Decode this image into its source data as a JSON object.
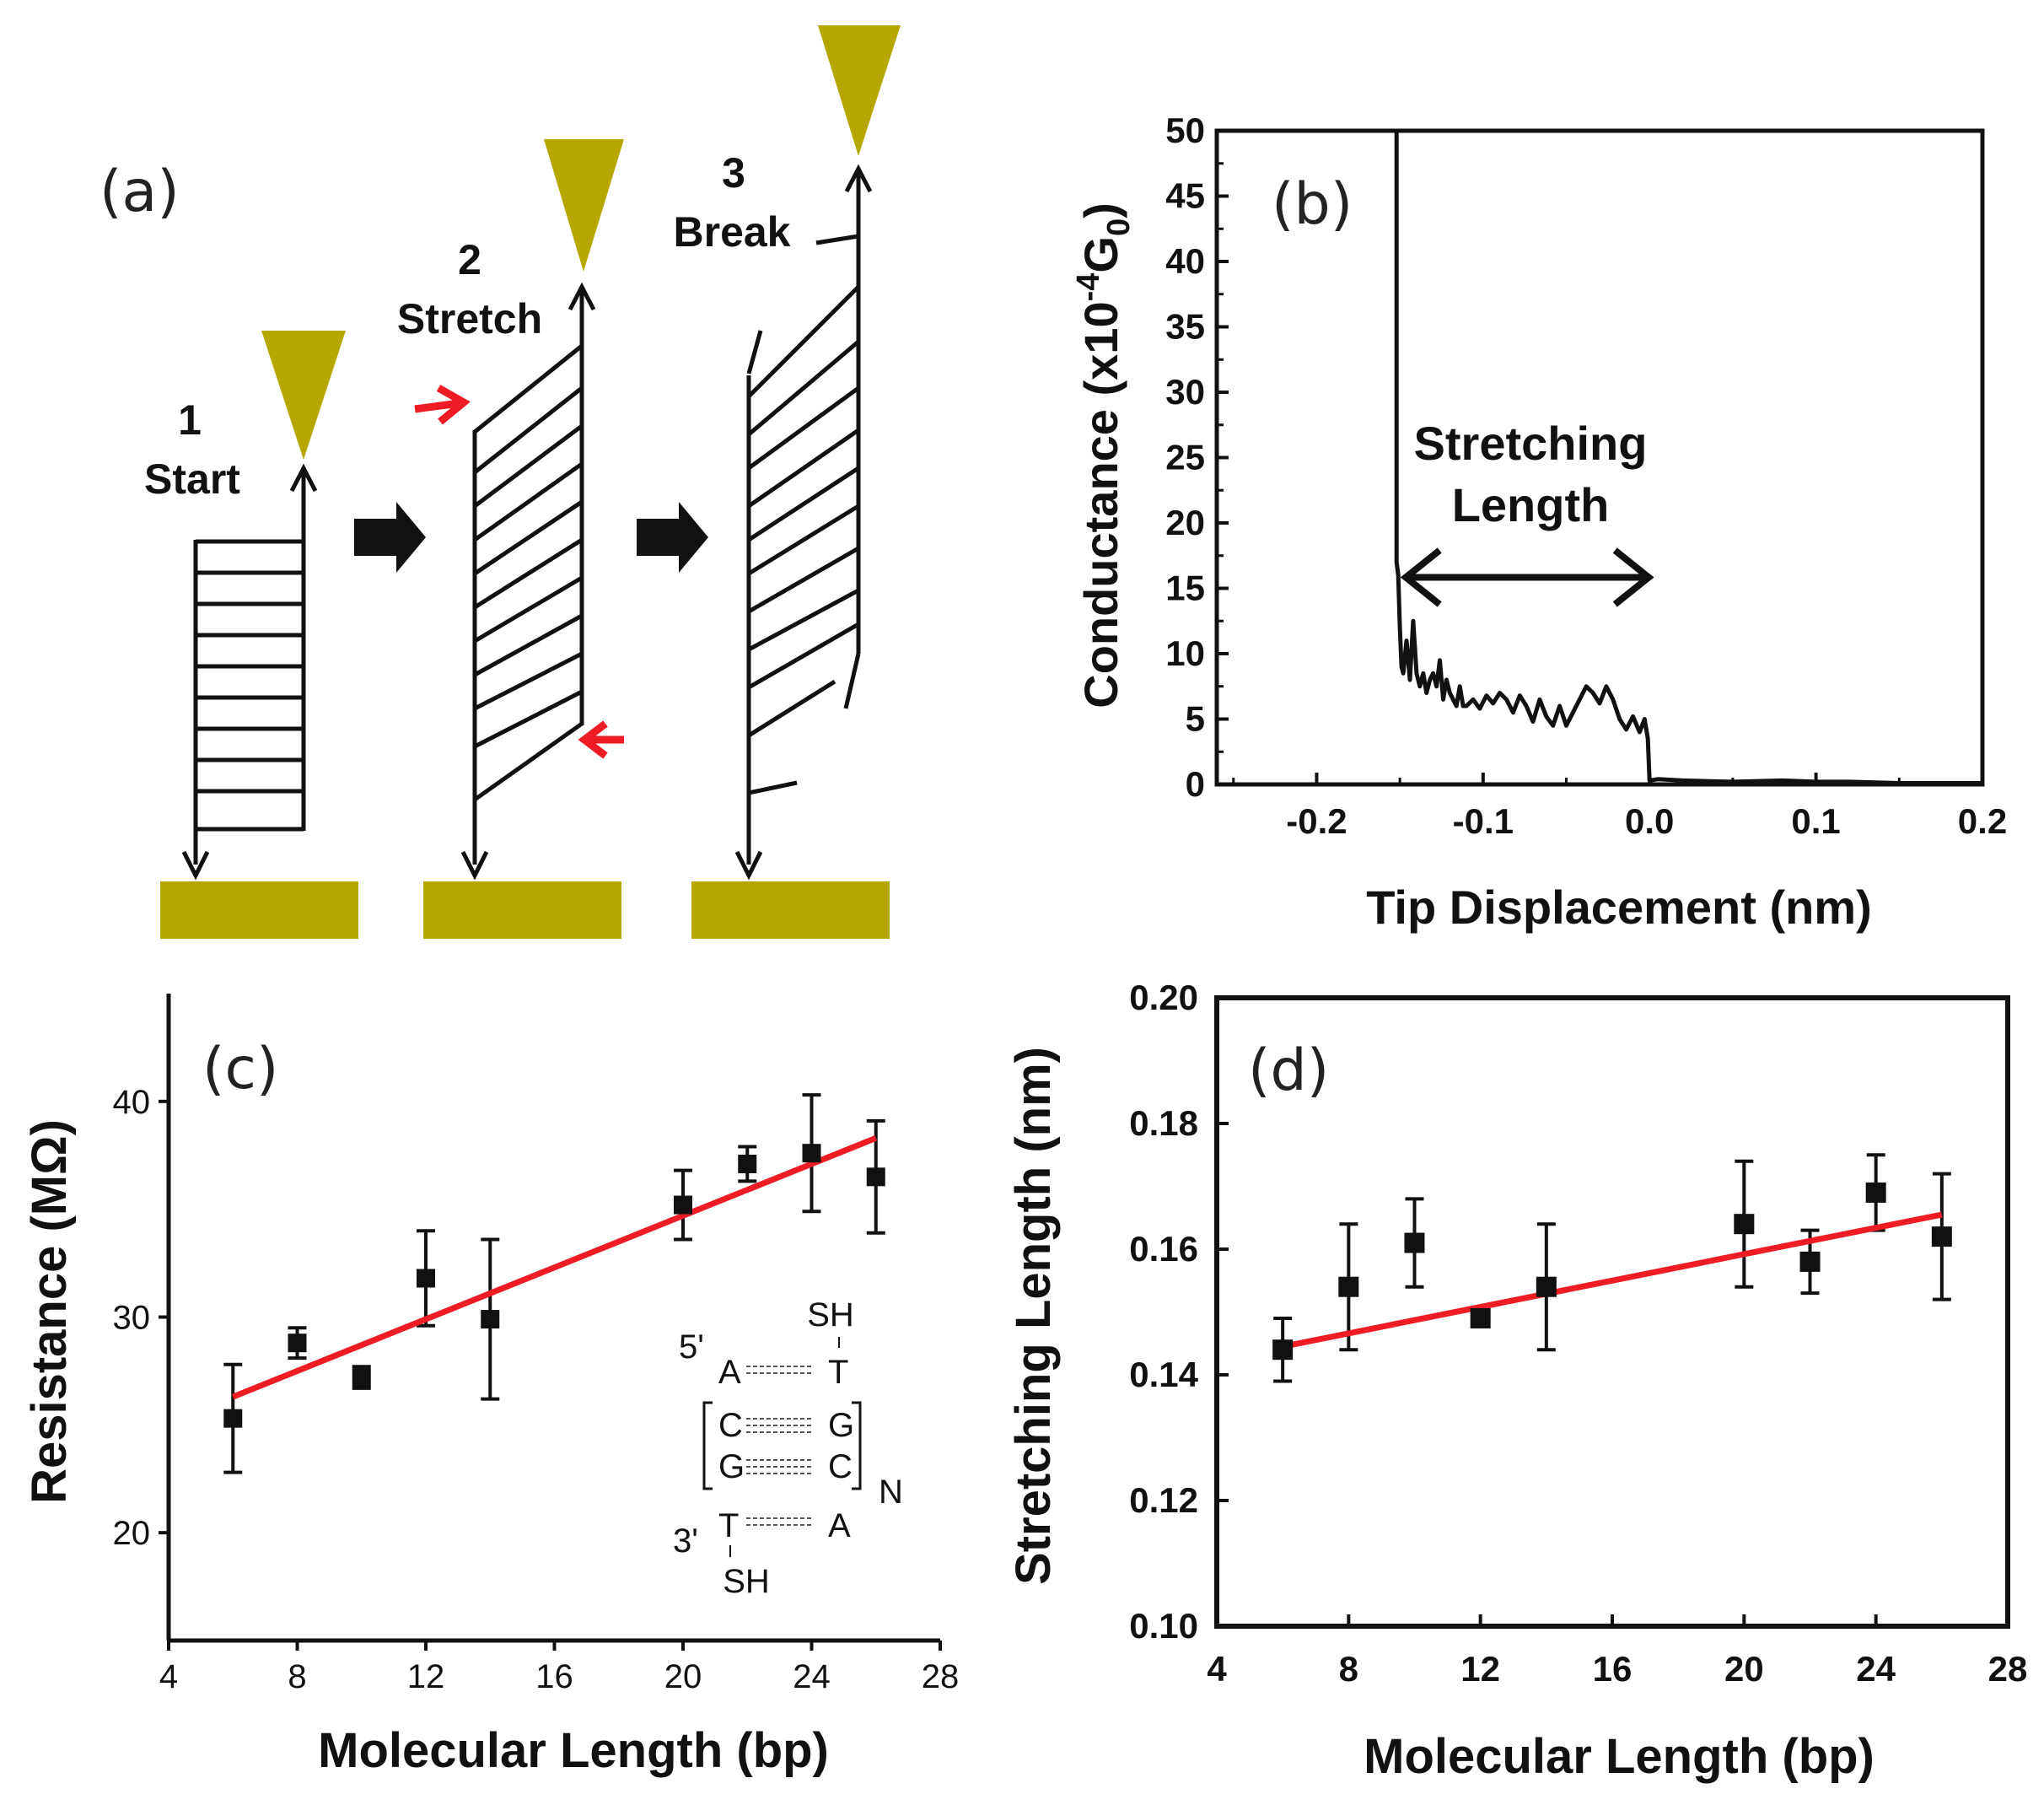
{
  "colors": {
    "gold": "#b5a700",
    "red": "#ee1c25",
    "black": "#111111"
  },
  "panel_a": {
    "label": "(a)",
    "steps": [
      {
        "number": "1",
        "name": "Start"
      },
      {
        "number": "2",
        "name": "Stretch"
      },
      {
        "number": "3",
        "name": "Break"
      }
    ],
    "icons": [
      "tip-icon",
      "electrode-icon",
      "arrow-right-icon",
      "red-arrow-icon"
    ]
  },
  "chart_data": [
    {
      "panel": "(b)",
      "type": "line",
      "title": "",
      "xlabel": "Tip Displacement (nm)",
      "ylabel": "Conductance (x10",
      "ylabel_sup": "-4",
      "ylabel_tail": "G",
      "ylabel_sub": "0",
      "ylabel_end": ")",
      "xlim": [
        -0.26,
        0.2
      ],
      "ylim": [
        0,
        50
      ],
      "xticks": [
        -0.2,
        -0.1,
        0.0,
        0.1,
        0.2
      ],
      "xtick_labels": [
        "-0.2",
        "-0.1",
        "0.0",
        "0.1",
        "0.2"
      ],
      "yticks": [
        0,
        5,
        10,
        15,
        20,
        25,
        30,
        35,
        40,
        45,
        50
      ],
      "ytick_labels": [
        "0",
        "5",
        "10",
        "15",
        "20",
        "25",
        "30",
        "35",
        "40",
        "45",
        "50"
      ],
      "annotation": {
        "line1": "Stretching",
        "line2": "Length",
        "from": -0.152,
        "to": 0.0,
        "y": 15
      },
      "x": [
        -0.152,
        -0.152,
        -0.151,
        -0.15,
        -0.149,
        -0.148,
        -0.146,
        -0.144,
        -0.142,
        -0.14,
        -0.138,
        -0.136,
        -0.134,
        -0.132,
        -0.13,
        -0.128,
        -0.126,
        -0.124,
        -0.122,
        -0.12,
        -0.118,
        -0.116,
        -0.114,
        -0.112,
        -0.11,
        -0.106,
        -0.102,
        -0.098,
        -0.094,
        -0.09,
        -0.086,
        -0.082,
        -0.078,
        -0.074,
        -0.07,
        -0.066,
        -0.062,
        -0.058,
        -0.054,
        -0.05,
        -0.046,
        -0.042,
        -0.038,
        -0.034,
        -0.03,
        -0.026,
        -0.022,
        -0.018,
        -0.014,
        -0.01,
        -0.006,
        -0.003,
        -0.001,
        0.0,
        0.005,
        0.02,
        0.05,
        0.08,
        0.1,
        0.12,
        0.15,
        0.18,
        0.2
      ],
      "y": [
        50,
        17,
        16,
        12,
        9,
        8.5,
        11,
        8,
        12.5,
        8.5,
        7.5,
        8.5,
        7,
        8,
        8.5,
        7.5,
        9.5,
        6.5,
        8,
        7,
        6.5,
        6,
        7.5,
        6,
        6,
        6.5,
        5.8,
        6.8,
        6.2,
        7,
        6.5,
        5.5,
        6.8,
        6,
        4.8,
        6.5,
        5.2,
        4.5,
        6,
        4.5,
        5.5,
        6.5,
        7.5,
        7,
        6.2,
        7.5,
        6.5,
        5,
        4.2,
        5.2,
        4,
        5,
        3.5,
        0.3,
        0.4,
        0.3,
        0.2,
        0.3,
        0.2,
        0.2,
        0.1,
        0.1,
        0.1
      ]
    },
    {
      "panel": "(c)",
      "type": "scatter",
      "title": "",
      "xlabel": "Molecular Length (bp)",
      "ylabel": "Resistance (MΩ)",
      "xlim": [
        4,
        28
      ],
      "ylim": [
        15,
        45
      ],
      "xticks": [
        4,
        8,
        12,
        16,
        20,
        24,
        28
      ],
      "xtick_labels": [
        "4",
        "8",
        "12",
        "16",
        "20",
        "24",
        "28"
      ],
      "yticks": [
        20,
        30,
        40
      ],
      "ytick_labels": [
        "20",
        "30",
        "40"
      ],
      "series": [
        {
          "name": "data",
          "x": [
            6,
            8,
            10,
            12,
            14,
            20,
            22,
            24,
            26
          ],
          "values": [
            25.3,
            28.8,
            27.2,
            31.8,
            29.9,
            35.2,
            37.1,
            37.6,
            36.5
          ],
          "errors": [
            2.5,
            0.7,
            0.5,
            2.2,
            3.7,
            1.6,
            0.8,
            2.7,
            2.6
          ]
        }
      ],
      "fit": {
        "x": [
          6,
          26
        ],
        "y": [
          26.3,
          38.3
        ]
      },
      "inset": {
        "five_prime": "5'",
        "three_prime": "3'",
        "top_sh": "SH",
        "bottom_sh": "SH",
        "pairs": [
          [
            "A",
            "T"
          ],
          [
            "C",
            "G"
          ],
          [
            "G",
            "C"
          ],
          [
            "T",
            "A"
          ]
        ],
        "repeat": "N"
      }
    },
    {
      "panel": "(d)",
      "type": "scatter",
      "title": "",
      "xlabel": "Molecular Length (bp)",
      "ylabel": "Stretching Length (nm)",
      "xlim": [
        4,
        28
      ],
      "ylim": [
        0.1,
        0.2
      ],
      "xticks": [
        4,
        8,
        12,
        16,
        20,
        24,
        28
      ],
      "xtick_labels": [
        "4",
        "8",
        "12",
        "16",
        "20",
        "24",
        "28"
      ],
      "yticks": [
        0.1,
        0.12,
        0.14,
        0.16,
        0.18,
        0.2
      ],
      "ytick_labels": [
        "0.10",
        "0.12",
        "0.14",
        "0.16",
        "0.18",
        "0.20"
      ],
      "series": [
        {
          "name": "data",
          "x": [
            6,
            8,
            10,
            12,
            14,
            20,
            22,
            24,
            26
          ],
          "values": [
            0.144,
            0.154,
            0.161,
            0.149,
            0.154,
            0.164,
            0.158,
            0.169,
            0.162
          ],
          "errors": [
            0.005,
            0.01,
            0.007,
            0.001,
            0.01,
            0.01,
            0.005,
            0.006,
            0.01
          ]
        }
      ],
      "fit": {
        "x": [
          6,
          26
        ],
        "y": [
          0.1445,
          0.1655
        ]
      }
    }
  ]
}
